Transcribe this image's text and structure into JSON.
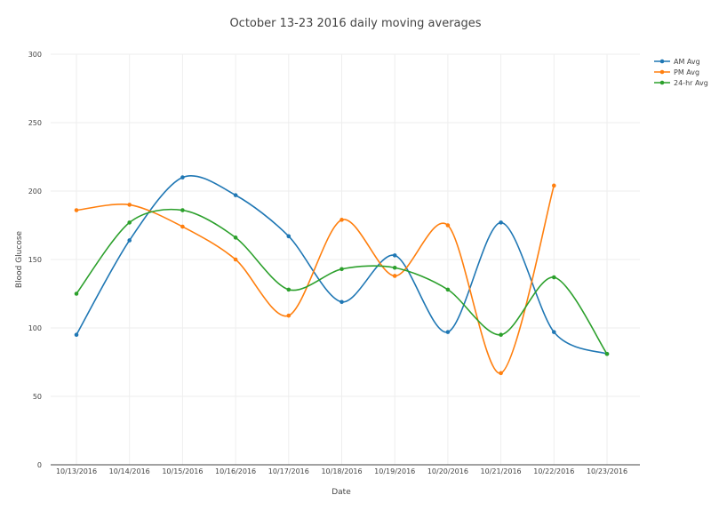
{
  "chart_data": {
    "type": "line",
    "title": "October 13-23 2016 daily moving averages",
    "xlabel": "Date",
    "ylabel": "Blood Glucose",
    "categories": [
      "10/13/2016",
      "10/14/2016",
      "10/15/2016",
      "10/16/2016",
      "10/17/2016",
      "10/18/2016",
      "10/19/2016",
      "10/20/2016",
      "10/21/2016",
      "10/22/2016",
      "10/23/2016"
    ],
    "ylim": [
      0,
      300
    ],
    "yticks": [
      0,
      50,
      100,
      150,
      200,
      250,
      300
    ],
    "grid": true,
    "legend_position": "top-right",
    "line_shape": "spline",
    "series": [
      {
        "name": "AM Avg",
        "color": "#1f77b4",
        "values": [
          95,
          164,
          210,
          197,
          167,
          119,
          153,
          97,
          177,
          97,
          81
        ]
      },
      {
        "name": "PM Avg",
        "color": "#ff7f0e",
        "values": [
          186,
          190,
          174,
          150,
          109,
          179,
          138,
          175,
          67,
          204,
          null
        ]
      },
      {
        "name": "24-hr Avg",
        "color": "#2ca02c",
        "values": [
          125,
          177,
          186,
          166,
          128,
          143,
          144,
          128,
          95,
          137,
          81
        ]
      }
    ]
  }
}
